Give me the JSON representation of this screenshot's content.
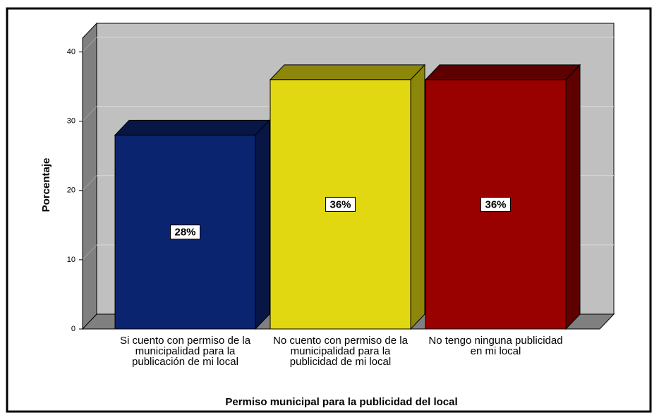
{
  "chart_data": {
    "type": "bar3d",
    "x_label": "Permiso municipal para la publicidad del local",
    "y_label": "Porcentaje",
    "categories": [
      "Si cuento con permiso de la municipalidad para la publicación de mi local",
      "No cuento con permiso de la municipalidad para la publicidad de mi local",
      "No tengo ninguna publicidad en mi local"
    ],
    "values": [
      28,
      36,
      36
    ],
    "value_labels": [
      "28%",
      "36%",
      "36%"
    ],
    "colors": [
      "#0b2470",
      "#e2d812",
      "#990000"
    ],
    "ylim": [
      0,
      42
    ],
    "yticks": [
      0,
      10,
      20,
      30,
      40
    ],
    "grid": true
  }
}
